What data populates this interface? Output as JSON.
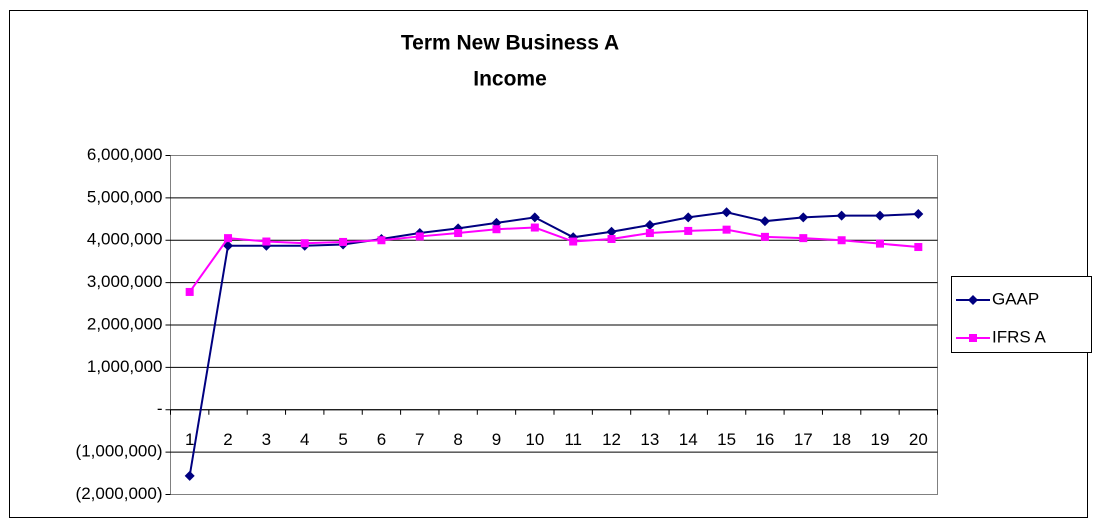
{
  "chart_data": {
    "type": "line",
    "title": [
      "Term New Business A",
      "Income"
    ],
    "categories": [
      "1",
      "2",
      "3",
      "4",
      "5",
      "6",
      "7",
      "8",
      "9",
      "10",
      "11",
      "12",
      "13",
      "14",
      "15",
      "16",
      "17",
      "18",
      "19",
      "20"
    ],
    "series": [
      {
        "name": "GAAP",
        "color": "#000080",
        "marker": "diamond",
        "values": [
          -1560000,
          3870000,
          3870000,
          3870000,
          3900000,
          4030000,
          4170000,
          4280000,
          4410000,
          4540000,
          4070000,
          4200000,
          4360000,
          4540000,
          4660000,
          4450000,
          4540000,
          4580000,
          4580000,
          4620000
        ]
      },
      {
        "name": "IFRS A",
        "color": "#ff00ff",
        "marker": "square",
        "values": [
          2780000,
          4050000,
          3970000,
          3930000,
          3960000,
          4000000,
          4090000,
          4170000,
          4260000,
          4300000,
          3970000,
          4030000,
          4170000,
          4220000,
          4250000,
          4080000,
          4050000,
          4000000,
          3920000,
          3840000
        ]
      }
    ],
    "ylim": [
      -2000000,
      6000000
    ],
    "yticks": [
      {
        "value": -2000000,
        "label": "(2,000,000)"
      },
      {
        "value": -1000000,
        "label": "(1,000,000)"
      },
      {
        "value": 0,
        "label": "-"
      },
      {
        "value": 1000000,
        "label": "1,000,000"
      },
      {
        "value": 2000000,
        "label": "2,000,000"
      },
      {
        "value": 3000000,
        "label": "3,000,000"
      },
      {
        "value": 4000000,
        "label": "4,000,000"
      },
      {
        "value": 5000000,
        "label": "5,000,000"
      },
      {
        "value": 6000000,
        "label": "6,000,000"
      }
    ],
    "grid": true,
    "legend": "right"
  }
}
